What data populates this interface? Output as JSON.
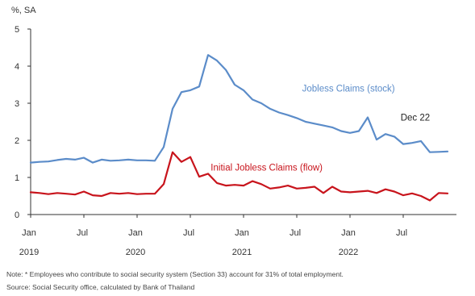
{
  "chart_data": {
    "type": "line",
    "unit_label": "%, SA",
    "ylim": [
      0,
      5
    ],
    "y_ticks": [
      "0",
      "1",
      "2",
      "3",
      "4",
      "5"
    ],
    "x_range": [
      0,
      48
    ],
    "x_ticks": [
      {
        "label": "Jan",
        "x": 0,
        "year": "2019"
      },
      {
        "label": "Jul",
        "x": 6
      },
      {
        "label": "Jan",
        "x": 12,
        "year": "2020"
      },
      {
        "label": "Jul",
        "x": 18
      },
      {
        "label": "Jan",
        "x": 24,
        "year": "2021"
      },
      {
        "label": "Jul",
        "x": 30
      },
      {
        "label": "Jan",
        "x": 36,
        "year": "2022"
      },
      {
        "label": "Jul",
        "x": 42
      }
    ],
    "series": [
      {
        "name": "Jobless Claims (stock)",
        "color": "#5b8cc9",
        "x": [
          0,
          1,
          2,
          3,
          4,
          5,
          6,
          7,
          8,
          9,
          10,
          11,
          12,
          13,
          14,
          15,
          16,
          17,
          18,
          19,
          20,
          21,
          22,
          23,
          24,
          25,
          26,
          27,
          28,
          29,
          30,
          31,
          32,
          33,
          34,
          35,
          36,
          37,
          38,
          39,
          40,
          41,
          42,
          43,
          44,
          45,
          46,
          47
        ],
        "values": [
          1.4,
          1.42,
          1.43,
          1.47,
          1.5,
          1.48,
          1.53,
          1.4,
          1.48,
          1.45,
          1.46,
          1.48,
          1.46,
          1.46,
          1.45,
          1.82,
          2.85,
          3.3,
          3.35,
          3.45,
          4.3,
          4.15,
          3.9,
          3.5,
          3.35,
          3.1,
          3.0,
          2.85,
          2.75,
          2.68,
          2.6,
          2.5,
          2.45,
          2.4,
          2.35,
          2.25,
          2.2,
          2.25,
          2.62,
          2.02,
          2.17,
          2.1,
          1.9,
          1.93,
          1.98,
          1.68,
          1.69,
          1.7
        ]
      },
      {
        "name": "Initial Jobless Claims (flow)",
        "color": "#c8141c",
        "x": [
          0,
          1,
          2,
          3,
          4,
          5,
          6,
          7,
          8,
          9,
          10,
          11,
          12,
          13,
          14,
          15,
          16,
          17,
          18,
          19,
          20,
          21,
          22,
          23,
          24,
          25,
          26,
          27,
          28,
          29,
          30,
          31,
          32,
          33,
          34,
          35,
          36,
          37,
          38,
          39,
          40,
          41,
          42,
          43,
          44,
          45,
          46,
          47
        ],
        "values": [
          0.6,
          0.58,
          0.55,
          0.58,
          0.56,
          0.54,
          0.62,
          0.52,
          0.5,
          0.58,
          0.56,
          0.58,
          0.55,
          0.56,
          0.56,
          0.82,
          1.68,
          1.42,
          1.55,
          1.02,
          1.1,
          0.85,
          0.78,
          0.8,
          0.78,
          0.9,
          0.82,
          0.7,
          0.73,
          0.78,
          0.7,
          0.72,
          0.75,
          0.58,
          0.75,
          0.62,
          0.6,
          0.62,
          0.64,
          0.58,
          0.68,
          0.62,
          0.52,
          0.57,
          0.5,
          0.38,
          0.58,
          0.57
        ]
      }
    ],
    "annotations": [
      {
        "text": "Jobless Claims (stock)",
        "color": "#5b8cc9",
        "x": 30.6,
        "y": 3.32
      },
      {
        "text": "Dec 22",
        "color": "#222222",
        "x": 41.7,
        "y": 2.53
      },
      {
        "text": "Initial Jobless Claims (flow)",
        "color": "#c8141c",
        "x": 20.3,
        "y": 1.18
      }
    ],
    "grid": false,
    "legend": "none"
  },
  "notes": {
    "note": "Note: * Employees who contribute to social security system (Section 33) account for 31% of total employment.",
    "source": "Source: Social Security office, calculated by Bank of Thailand"
  }
}
